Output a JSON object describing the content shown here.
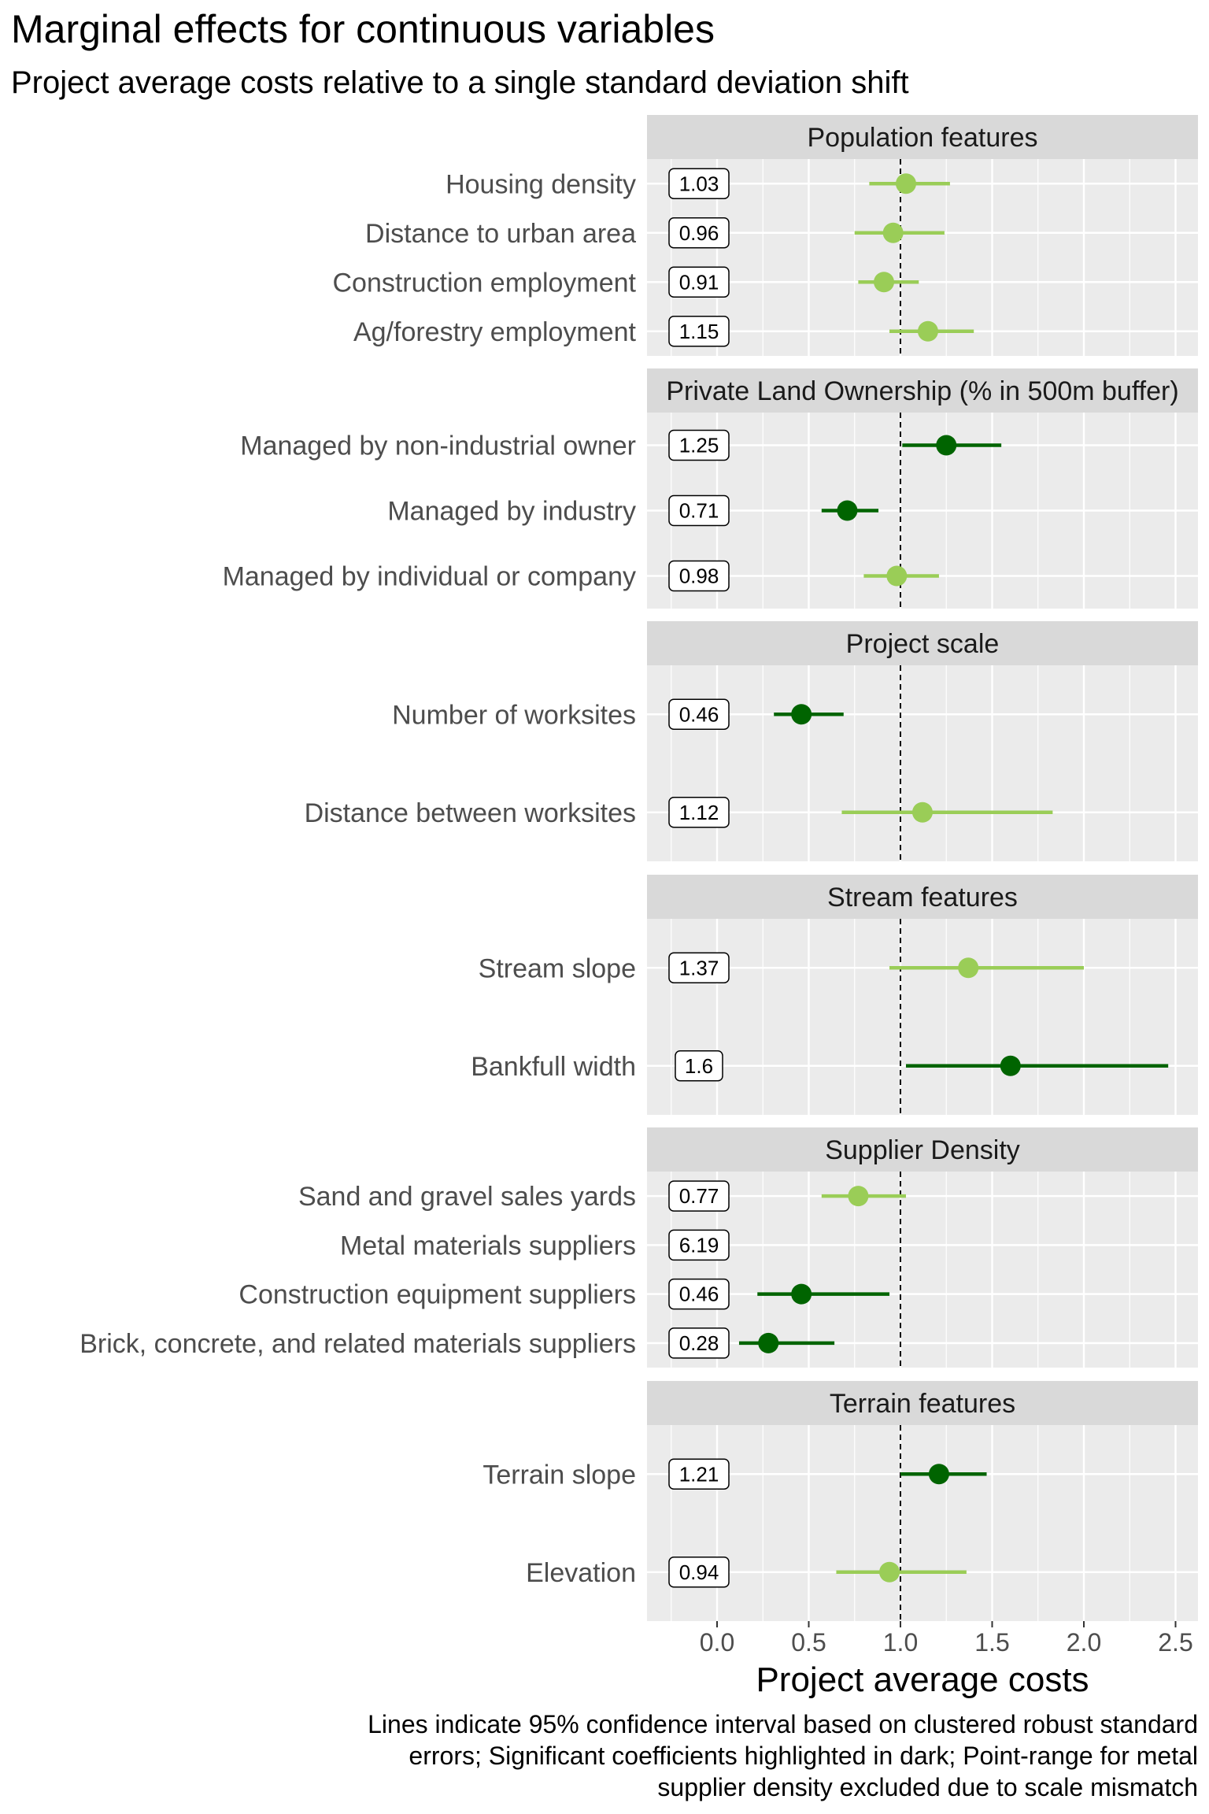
{
  "title": "Marginal effects for continuous variables",
  "subtitle": "Project average costs relative to a single standard deviation shift",
  "caption": [
    "Lines indicate 95% confidence interval based on clustered robust standard",
    "errors; Significant coefficients highlighted in dark; Point-range for metal",
    "supplier density excluded due to scale mismatch"
  ],
  "colors": {
    "significant": "#006400",
    "not_significant": "#9ACD57",
    "panel_bg": "#EBEBEB",
    "strip_bg": "#D9D9D9",
    "grid": "#FFFFFF"
  },
  "chart_data": {
    "type": "point-range",
    "xlabel": "Project average costs",
    "xlim": [
      -0.25,
      2.65
    ],
    "x_ticks": [
      0.0,
      0.5,
      1.0,
      1.5,
      2.0,
      2.5
    ],
    "x_tick_labels": [
      "0.0",
      "0.5",
      "1.0",
      "1.5",
      "2.0",
      "2.5"
    ],
    "reference_line": 1.0,
    "grid": true,
    "panels": [
      {
        "strip": "Population features",
        "rows": [
          {
            "label": "Housing density",
            "value": 1.03,
            "label_text": "1.03",
            "ci": [
              0.83,
              1.27
            ],
            "significant": false
          },
          {
            "label": "Distance to urban area",
            "value": 0.96,
            "label_text": "0.96",
            "ci": [
              0.75,
              1.24
            ],
            "significant": false
          },
          {
            "label": "Construction employment",
            "value": 0.91,
            "label_text": "0.91",
            "ci": [
              0.77,
              1.1
            ],
            "significant": false
          },
          {
            "label": "Ag/forestry employment",
            "value": 1.15,
            "label_text": "1.15",
            "ci": [
              0.94,
              1.4
            ],
            "significant": false
          }
        ]
      },
      {
        "strip": "Private Land Ownership (% in 500m buffer)",
        "rows": [
          {
            "label": "Managed by non-industrial owner",
            "value": 1.25,
            "label_text": "1.25",
            "ci": [
              1.01,
              1.55
            ],
            "significant": true
          },
          {
            "label": "Managed by industry",
            "value": 0.71,
            "label_text": "0.71",
            "ci": [
              0.57,
              0.88
            ],
            "significant": true
          },
          {
            "label": "Managed by individual or company",
            "value": 0.98,
            "label_text": "0.98",
            "ci": [
              0.8,
              1.21
            ],
            "significant": false
          }
        ]
      },
      {
        "strip": "Project scale",
        "rows": [
          {
            "label": "Number of worksites",
            "value": 0.46,
            "label_text": "0.46",
            "ci": [
              0.31,
              0.69
            ],
            "significant": true
          },
          {
            "label": "Distance between worksites",
            "value": 1.12,
            "label_text": "1.12",
            "ci": [
              0.68,
              1.83
            ],
            "significant": false
          }
        ]
      },
      {
        "strip": "Stream features",
        "rows": [
          {
            "label": "Stream slope",
            "value": 1.37,
            "label_text": "1.37",
            "ci": [
              0.94,
              2.0
            ],
            "significant": false
          },
          {
            "label": "Bankfull width",
            "value": 1.6,
            "label_text": "1.6",
            "ci": [
              1.03,
              2.46
            ],
            "significant": true
          }
        ]
      },
      {
        "strip": "Supplier Density",
        "rows": [
          {
            "label": "Sand and gravel sales yards",
            "value": 0.77,
            "label_text": "0.77",
            "ci": [
              0.57,
              1.03
            ],
            "significant": false
          },
          {
            "label": "Metal materials suppliers",
            "value": 6.19,
            "label_text": "6.19",
            "ci": null,
            "significant": true
          },
          {
            "label": "Construction equipment suppliers",
            "value": 0.46,
            "label_text": "0.46",
            "ci": [
              0.22,
              0.94
            ],
            "significant": true
          },
          {
            "label": "Brick, concrete, and related materials suppliers",
            "value": 0.28,
            "label_text": "0.28",
            "ci": [
              0.12,
              0.64
            ],
            "significant": true
          }
        ]
      },
      {
        "strip": "Terrain features",
        "rows": [
          {
            "label": "Terrain slope",
            "value": 1.21,
            "label_text": "1.21",
            "ci": [
              1.0,
              1.47
            ],
            "significant": true
          },
          {
            "label": "Elevation",
            "value": 0.94,
            "label_text": "0.94",
            "ci": [
              0.65,
              1.36
            ],
            "significant": false
          }
        ]
      }
    ]
  }
}
